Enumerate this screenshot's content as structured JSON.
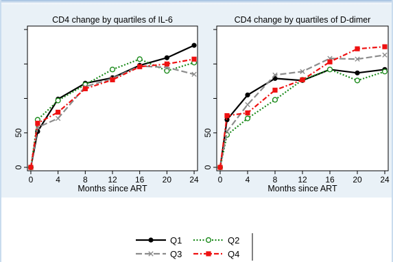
{
  "colors": {
    "Q1": "#000000",
    "Q2": "#1b8a1b",
    "Q3": "#8c8c8c",
    "Q4": "#ee1111",
    "panel_bg": "#e9f1f7",
    "frame_top": "#bcd2e8"
  },
  "chart_data": [
    {
      "type": "line",
      "title": "CD4 change by quartiles of IL-6",
      "xlabel": "Months since ART",
      "ylabel": "",
      "x": [
        0,
        1,
        4,
        8,
        12,
        16,
        20,
        24
      ],
      "xticks": [
        0,
        4,
        8,
        12,
        16,
        20,
        24
      ],
      "xtick_labels": [
        "0",
        "4",
        "8",
        "12",
        "16",
        "20",
        "24"
      ],
      "xlim": [
        -0.5,
        24.5
      ],
      "ylim": [
        -5,
        205
      ],
      "yticks": [
        0,
        50,
        100,
        150,
        200
      ],
      "ytick_labels": [
        "0",
        "50",
        "",
        "",
        ""
      ],
      "grid": false,
      "series": [
        {
          "name": "Q1",
          "values": [
            0,
            52,
            99,
            122,
            130,
            148,
            159,
            177
          ]
        },
        {
          "name": "Q2",
          "values": [
            0,
            69,
            97,
            120,
            142,
            157,
            140,
            152
          ]
        },
        {
          "name": "Q3",
          "values": [
            0,
            58,
            71,
            117,
            129,
            147,
            145,
            135
          ]
        },
        {
          "name": "Q4",
          "values": [
            0,
            64,
            80,
            114,
            127,
            146,
            150,
            157
          ]
        }
      ]
    },
    {
      "type": "line",
      "title": "CD4 change by quartiles of D-dimer",
      "xlabel": "Months since ART",
      "ylabel": "",
      "x": [
        0,
        1,
        4,
        8,
        12,
        16,
        20,
        24
      ],
      "xticks": [
        0,
        4,
        8,
        12,
        16,
        20,
        24
      ],
      "xtick_labels": [
        "0",
        "4",
        "8",
        "12",
        "16",
        "20",
        "24"
      ],
      "xlim": [
        -0.5,
        24.5
      ],
      "ylim": [
        -5,
        205
      ],
      "yticks": [
        0,
        50,
        100,
        150,
        200
      ],
      "ytick_labels": [
        "0",
        "50",
        "",
        "",
        ""
      ],
      "grid": false,
      "series": [
        {
          "name": "Q1",
          "values": [
            0,
            69,
            105,
            129,
            126,
            142,
            137,
            142
          ]
        },
        {
          "name": "Q2",
          "values": [
            0,
            47,
            71,
            98,
            127,
            142,
            126,
            139
          ]
        },
        {
          "name": "Q3",
          "values": [
            0,
            52,
            91,
            134,
            139,
            158,
            157,
            163
          ]
        },
        {
          "name": "Q4",
          "values": [
            0,
            75,
            79,
            112,
            127,
            153,
            172,
            175
          ]
        }
      ]
    }
  ],
  "legend": {
    "placement": "bottom-center",
    "entries": [
      {
        "key": "Q1",
        "label": "Q1"
      },
      {
        "key": "Q2",
        "label": "Q2"
      },
      {
        "key": "Q3",
        "label": "Q3"
      },
      {
        "key": "Q4",
        "label": "Q4"
      }
    ]
  }
}
